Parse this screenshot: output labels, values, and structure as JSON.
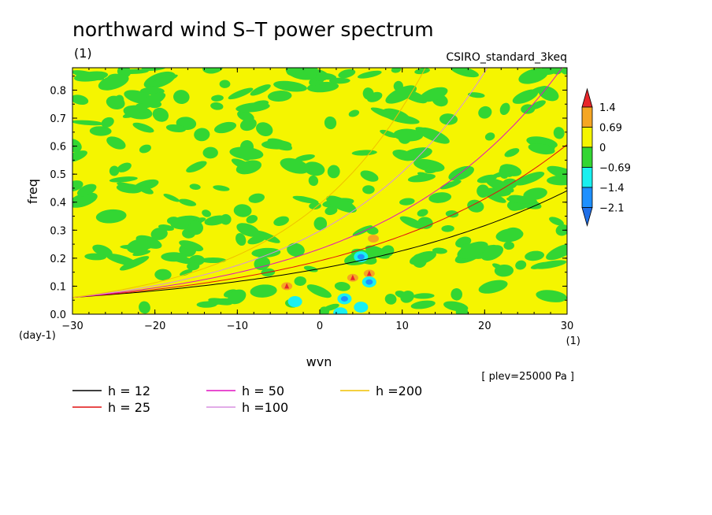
{
  "chart_data": {
    "type": "heatmap",
    "title": "northward wind S–T power spectrum",
    "unit_label": "(1)",
    "subtitle": "CSIRO_standard_3keq",
    "xlabel": "wvn",
    "ylabel": "freq",
    "x_unit": "(1)",
    "y_unit": "(day-1)",
    "xlim": [
      -30,
      30
    ],
    "ylim": [
      0,
      0.88
    ],
    "x_ticks": [
      -30,
      -20,
      -10,
      0,
      10,
      20,
      30
    ],
    "y_ticks": [
      0.0,
      0.1,
      0.2,
      0.3,
      0.4,
      0.5,
      0.6,
      0.7,
      0.8
    ],
    "level_note": "[ plev=25000 Pa ]",
    "colorbar": {
      "levels": [
        "1.4",
        "0.69",
        "0",
        "−0.69",
        "−1.4",
        "−2.1"
      ],
      "colors": [
        "#e8262a",
        "#f5a623",
        "#f5f500",
        "#33d633",
        "#19f0f0",
        "#1e90ff",
        "#1f6fe8"
      ]
    },
    "field_description": "mostly yellow (0 to 0.69) with green patches (-0.69 to 0); isolated red/orange maxima near wvn 3-6, freq 0.10-0.15; cyan/blue minima near wvn 2-6, freq 0.02-0.12",
    "anomalies": [
      {
        "x": -4,
        "y": 0.1,
        "level": "1.4"
      },
      {
        "x": 4,
        "y": 0.13,
        "level": "1.4"
      },
      {
        "x": 6,
        "y": 0.145,
        "level": "1.4"
      },
      {
        "x": 6.5,
        "y": 0.27,
        "level": "0.69"
      },
      {
        "x": 3,
        "y": 0.055,
        "level": "-1.4"
      },
      {
        "x": 6,
        "y": 0.115,
        "level": "-1.4"
      },
      {
        "x": 5,
        "y": 0.025,
        "level": "-0.69"
      },
      {
        "x": 2.5,
        "y": 0.005,
        "level": "-0.69"
      },
      {
        "x": 5,
        "y": 0.205,
        "level": "-1.4"
      },
      {
        "x": -3,
        "y": 0.045,
        "level": "-0.69"
      }
    ],
    "series": [
      {
        "name": "h = 12",
        "h": 12,
        "color": "#000000"
      },
      {
        "name": "h = 25",
        "h": 25,
        "color": "#e01010"
      },
      {
        "name": "h = 50",
        "h": 50,
        "color": "#e010c0"
      },
      {
        "name": "h =100",
        "h": 100,
        "color": "#d890e0"
      },
      {
        "name": "h =200",
        "h": 200,
        "color": "#f0c000"
      }
    ],
    "legend_placement": "bottom"
  }
}
